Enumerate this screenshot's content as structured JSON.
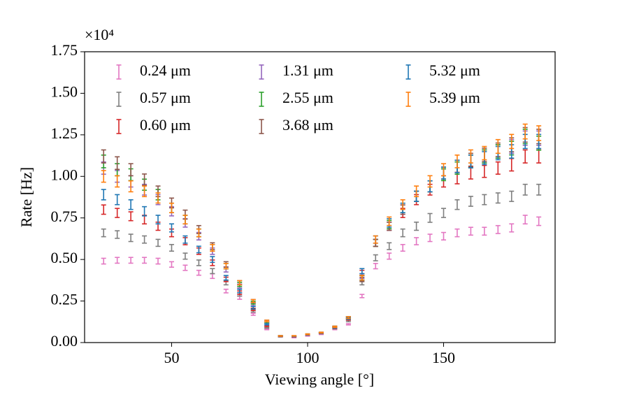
{
  "chart_data": {
    "type": "errorbar",
    "xlabel": "Viewing angle [°]",
    "ylabel": "Rate [Hz]",
    "offset_label": "×10⁴",
    "x": [
      25,
      30,
      35,
      40,
      45,
      50,
      55,
      60,
      65,
      70,
      75,
      80,
      85,
      90,
      95,
      100,
      105,
      110,
      115,
      120,
      125,
      130,
      135,
      140,
      145,
      150,
      155,
      160,
      165,
      170,
      175,
      180,
      185
    ],
    "xlim": [
      18,
      191
    ],
    "xticks": [
      50,
      100,
      150
    ],
    "ylim": [
      0,
      17500
    ],
    "yticks": [
      {
        "value": 0,
        "label": "0.00"
      },
      {
        "value": 2500,
        "label": "0.25"
      },
      {
        "value": 5000,
        "label": "0.50"
      },
      {
        "value": 7500,
        "label": "0.75"
      },
      {
        "value": 10000,
        "label": "1.00"
      },
      {
        "value": 12500,
        "label": "1.25"
      },
      {
        "value": 15000,
        "label": "1.50"
      },
      {
        "value": 17500,
        "label": "1.75"
      }
    ],
    "legend_position": "upper-left",
    "series": [
      {
        "name": "0.24 μm",
        "color": "#e377c2",
        "relative_error": 3.5,
        "values": [
          4900,
          4950,
          4950,
          4950,
          4900,
          4700,
          4500,
          4200,
          4000,
          3100,
          2700,
          1700,
          800,
          350,
          300,
          400,
          500,
          800,
          1100,
          2800,
          4600,
          5200,
          5700,
          6100,
          6300,
          6400,
          6600,
          6700,
          6700,
          6800,
          6900,
          7400,
          7300
        ]
      },
      {
        "name": "0.57 μm",
        "color": "#7f7f7f",
        "relative_error": 3.5,
        "values": [
          6600,
          6500,
          6300,
          6200,
          6000,
          5700,
          5200,
          4800,
          4300,
          3600,
          2900,
          1900,
          900,
          350,
          350,
          450,
          550,
          850,
          1300,
          3600,
          5100,
          5800,
          6600,
          7000,
          7500,
          7800,
          8300,
          8500,
          8600,
          8700,
          8800,
          9200,
          9200
        ]
      },
      {
        "name": "0.60 μm",
        "color": "#d62728",
        "relative_error": 3.5,
        "values": [
          8000,
          7800,
          7600,
          7400,
          7000,
          6600,
          6100,
          5500,
          4800,
          3800,
          3000,
          2000,
          1000,
          380,
          350,
          470,
          570,
          900,
          1400,
          4200,
          6000,
          7000,
          7800,
          8600,
          9200,
          9700,
          9900,
          10200,
          10300,
          10500,
          10700,
          11200,
          11200
        ]
      },
      {
        "name": "1.31 μm",
        "color": "#9467bd",
        "relative_error": 3.5,
        "values": [
          10500,
          10000,
          9700,
          9200,
          8600,
          7900,
          7200,
          6400,
          5500,
          4400,
          3400,
          2300,
          1200,
          400,
          380,
          500,
          600,
          950,
          1500,
          4000,
          6000,
          7000,
          8000,
          8800,
          9400,
          10100,
          10500,
          10900,
          11200,
          11500,
          11800,
          12300,
          12300
        ]
      },
      {
        "name": "2.55 μm",
        "color": "#2ca02c",
        "relative_error": 3.5,
        "values": [
          10900,
          10400,
          10100,
          9500,
          8900,
          8100,
          7400,
          6600,
          5700,
          4600,
          3500,
          2400,
          1200,
          400,
          380,
          500,
          600,
          950,
          1500,
          3900,
          6000,
          7100,
          8100,
          8800,
          9400,
          10100,
          10500,
          10900,
          11200,
          11500,
          11700,
          12400,
          12000
        ]
      },
      {
        "name": "3.68 μm",
        "color": "#8c564b",
        "relative_error": 3.5,
        "values": [
          11200,
          10800,
          10400,
          9800,
          9100,
          8400,
          7700,
          6800,
          5800,
          4700,
          3600,
          2500,
          1300,
          400,
          400,
          500,
          600,
          950,
          1500,
          3800,
          6000,
          7000,
          8000,
          8800,
          9400,
          10200,
          10600,
          11000,
          11300,
          11600,
          11900,
          12500,
          12400
        ]
      },
      {
        "name": "5.32 μm",
        "color": "#1f77b4",
        "relative_error": 3.5,
        "values": [
          8900,
          8600,
          8300,
          7900,
          7400,
          6900,
          6200,
          5600,
          5000,
          3900,
          3100,
          2100,
          1100,
          400,
          370,
          480,
          580,
          920,
          1450,
          4300,
          6200,
          7200,
          8100,
          8800,
          9400,
          10200,
          10600,
          10900,
          11100,
          11400,
          11500,
          12100,
          12100
        ]
      },
      {
        "name": "5.39 μm",
        "color": "#ff7f0e",
        "relative_error": 3.5,
        "values": [
          10000,
          9700,
          9400,
          9100,
          8700,
          8100,
          7400,
          6600,
          5700,
          4600,
          3600,
          2500,
          1300,
          400,
          400,
          500,
          600,
          950,
          1500,
          3900,
          6200,
          7300,
          8300,
          9100,
          9700,
          10400,
          10900,
          11200,
          11400,
          11800,
          12100,
          12700,
          12600
        ]
      }
    ]
  }
}
